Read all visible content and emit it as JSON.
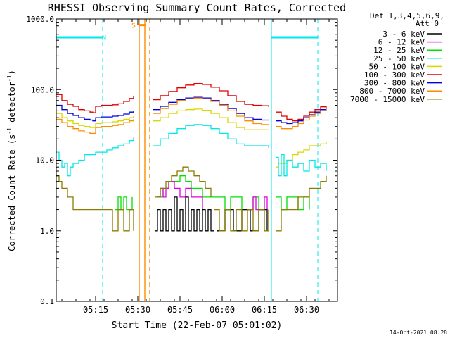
{
  "chart_data": {
    "type": "line",
    "title": "RHESSI Observing Summary Count Rates, Corrected",
    "xlabel": "Start Time (22-Feb-07 05:01:02)",
    "ylabel": "Corrected Count Rate (s",
    "ylabel_sup": "-1",
    "ylabel_tail": " detector",
    "ylabel_tail_sup": "-1",
    "ylabel_close": ")",
    "yscale": "log",
    "ylim": [
      0.1,
      1000.0
    ],
    "xlim_minutes": [
      0,
      100
    ],
    "y_ticks": [
      {
        "value": 1000.0,
        "label": "1000.0"
      },
      {
        "value": 100.0,
        "label": "100.0"
      },
      {
        "value": 10.0,
        "label": "10.0"
      },
      {
        "value": 1.0,
        "label": "1.0"
      },
      {
        "value": 0.1,
        "label": "0.1"
      }
    ],
    "x_ticks": [
      {
        "minute": 14,
        "label": "05:15"
      },
      {
        "minute": 29,
        "label": "05:30"
      },
      {
        "minute": 44,
        "label": "05:45"
      },
      {
        "minute": 59,
        "label": "06:00"
      },
      {
        "minute": 74,
        "label": "06:15"
      },
      {
        "minute": 89,
        "label": "06:30"
      }
    ],
    "legend": {
      "placement": "right",
      "header": [
        "Det 1,3,4,5,6,9,",
        "Att 0"
      ],
      "entries": [
        {
          "label": "3 - 6 keV",
          "color": "#000000"
        },
        {
          "label": "6 - 12 keV",
          "color": "#e000e0"
        },
        {
          "label": "12 - 25 keV",
          "color": "#00e000"
        },
        {
          "label": "25 - 50 keV",
          "color": "#00e8e8"
        },
        {
          "label": "50 - 100 keV",
          "color": "#d8d800"
        },
        {
          "label": "100 - 300 keV",
          "color": "#e00000"
        },
        {
          "label": "300 - 800 keV",
          "color": "#0000e0"
        },
        {
          "label": "800 - 7000 keV",
          "color": "#ff8c00"
        },
        {
          "label": "7000 - 15000 keV",
          "color": "#8b7d00"
        }
      ]
    },
    "annotations": [
      {
        "label": "N",
        "color": "#00e8e8",
        "minute": 17
      },
      {
        "label": "S",
        "color": "#ff8c00",
        "minute": 27.5
      }
    ],
    "night_markers": {
      "color": "#00e8e8",
      "solid_minutes": [
        0,
        76.5
      ],
      "dashed_minutes": [
        16.5,
        93
      ],
      "bars": [
        {
          "from": 0,
          "to": 16.5,
          "y": 550
        },
        {
          "from": 76.5,
          "to": 93,
          "y": 550
        }
      ]
    },
    "saa_markers": {
      "color": "#ff8c00",
      "solid_minutes": [
        29.5,
        31.5
      ],
      "dashed_minutes": [
        33.2
      ],
      "bar": {
        "from": 29.5,
        "to": 32,
        "y": 820
      }
    },
    "series": [
      {
        "name": "100 - 300 keV",
        "color": "#e00000",
        "segments": [
          {
            "x": [
              0,
              2,
              4,
              6,
              8,
              10,
              12,
              13,
              14,
              16,
              18,
              20,
              22,
              24,
              26,
              27.5
            ],
            "y": [
              85,
              70,
              62,
              58,
              52,
              50,
              48,
              47,
              58,
              60,
              60,
              61,
              63,
              68,
              75,
              82
            ]
          },
          {
            "x": [
              34.5,
              37,
              40,
              43,
              46,
              49,
              52,
              55,
              58,
              61,
              64,
              67,
              70,
              73,
              75.5
            ],
            "y": [
              72,
              82,
              94,
              106,
              116,
              122,
              118,
              108,
              96,
              82,
              68,
              62,
              60,
              59,
              57
            ]
          },
          {
            "x": [
              78,
              80,
              82,
              84,
              86,
              88,
              90,
              92,
              94,
              96
            ],
            "y": [
              48,
              42,
              38,
              36,
              38,
              42,
              48,
              52,
              57,
              58
            ]
          }
        ]
      },
      {
        "name": "300 - 800 keV",
        "color": "#0000e0",
        "segments": [
          {
            "x": [
              0,
              2,
              4,
              6,
              8,
              10,
              12,
              13,
              14,
              16,
              18,
              20,
              22,
              24,
              26,
              27.5
            ],
            "y": [
              60,
              52,
              46,
              43,
              40,
              38,
              37,
              36,
              40,
              41,
              41,
              42,
              43,
              45,
              48,
              50
            ]
          },
          {
            "x": [
              34.5,
              37,
              40,
              43,
              46,
              49,
              52,
              55,
              58,
              61,
              64,
              67,
              70,
              73,
              75.5
            ],
            "y": [
              52,
              58,
              66,
              72,
              76,
              78,
              76,
              70,
              62,
              54,
              46,
              40,
              38,
              37,
              37
            ]
          },
          {
            "x": [
              78,
              80,
              82,
              84,
              86,
              88,
              90,
              92,
              94,
              96
            ],
            "y": [
              36,
              34,
              33,
              34,
              36,
              40,
              44,
              48,
              52,
              56
            ]
          }
        ]
      },
      {
        "name": "800 - 7000 keV",
        "color": "#ff8c00",
        "segments": [
          {
            "x": [
              0,
              2,
              4,
              6,
              8,
              10,
              12,
              13,
              14,
              16,
              18,
              20,
              22,
              24,
              26,
              27.5
            ],
            "y": [
              38,
              34,
              30,
              28,
              26,
              25,
              24,
              24,
              29,
              30,
              30,
              31,
              32,
              34,
              36,
              38
            ]
          },
          {
            "x": [
              34.5,
              37,
              40,
              43,
              46,
              49,
              52,
              55,
              58,
              61,
              64,
              67,
              70,
              73,
              75.5
            ],
            "y": [
              46,
              54,
              62,
              70,
              74,
              76,
              74,
              68,
              60,
              50,
              42,
              36,
              33,
              32,
              32
            ]
          },
          {
            "x": [
              78,
              80,
              82,
              84,
              86,
              88,
              90,
              92,
              94,
              96
            ],
            "y": [
              30,
              28,
              28,
              30,
              33,
              37,
              42,
              46,
              50,
              54
            ]
          }
        ]
      },
      {
        "name": "50 - 100 keV",
        "color": "#d8d800",
        "segments": [
          {
            "x": [
              0,
              2,
              4,
              6,
              8,
              10,
              12,
              13,
              14,
              16,
              18,
              20,
              22,
              24,
              26,
              27.5
            ],
            "y": [
              46,
              40,
              36,
              33,
              31,
              30,
              29,
              29,
              33,
              34,
              34,
              35,
              36,
              38,
              40,
              42
            ]
          },
          {
            "x": [
              34.5,
              37,
              40,
              43,
              46,
              49,
              52,
              55,
              58,
              61,
              64,
              67,
              70,
              73,
              75.5
            ],
            "y": [
              36,
              40,
              46,
              50,
              52,
              53,
              51,
              46,
              40,
              34,
              29,
              27,
              27,
              27,
              27
            ]
          },
          {
            "x": [
              78,
              79,
              80,
              82,
              84,
              86,
              88,
              90,
              92,
              94,
              96
            ],
            "y": [
              8,
              9,
              9,
              10,
              12,
              13,
              14,
              16,
              16,
              17,
              18
            ]
          }
        ]
      },
      {
        "name": "25 - 50 keV",
        "color": "#00e8e8",
        "segments": [
          {
            "x": [
              0,
              1,
              2,
              3,
              4,
              5,
              6,
              8,
              10,
              12,
              14,
              16,
              18,
              20,
              22,
              24,
              26,
              27.5
            ],
            "y": [
              13,
              10,
              8,
              9,
              6,
              8,
              9,
              10,
              12,
              12,
              13,
              13,
              14,
              15,
              16,
              17,
              19,
              21
            ]
          },
          {
            "x": [
              34.5,
              37,
              40,
              43,
              46,
              49,
              52,
              55,
              58,
              61,
              64,
              67,
              70,
              73,
              75.5
            ],
            "y": [
              16,
              20,
              24,
              28,
              31,
              32,
              31,
              28,
              24,
              20,
              17,
              16,
              16,
              16,
              15
            ]
          },
          {
            "x": [
              78,
              79,
              80,
              81,
              82,
              84,
              86,
              88,
              90,
              92,
              94,
              96
            ],
            "y": [
              11,
              6,
              12,
              6,
              10,
              8,
              9,
              7,
              10,
              8,
              9,
              7
            ]
          }
        ]
      },
      {
        "name": "12 - 25 keV",
        "color": "#00e000",
        "segments": [
          {
            "x": [
              21,
              22,
              23,
              24,
              25,
              26,
              27
            ],
            "y": [
              2,
              3,
              2,
              3,
              2,
              2,
              3
            ]
          },
          {
            "x": [
              36,
              38,
              40,
              42,
              44,
              46,
              48,
              50,
              52,
              54,
              56,
              58,
              60,
              62,
              64,
              66,
              68,
              70,
              72,
              74
            ],
            "y": [
              3,
              4,
              5,
              5,
              6,
              5,
              4,
              4,
              3,
              3,
              3,
              3,
              2,
              3,
              3,
              2,
              2,
              3,
              2,
              2
            ]
          },
          {
            "x": [
              78,
              80,
              82,
              84,
              86,
              88,
              90
            ],
            "y": [
              3,
              2,
              3,
              3,
              2,
              3,
              2
            ]
          }
        ]
      },
      {
        "name": "6 - 12 keV",
        "color": "#e000e0",
        "segments": [
          {
            "x": [
              36,
              37,
              38,
              39,
              40,
              42,
              44,
              46,
              48,
              50,
              52
            ],
            "y": [
              3,
              4,
              3,
              4,
              5,
              4,
              3,
              4,
              3,
              3,
              2
            ]
          },
          {
            "x": [
              68,
              69,
              70,
              71,
              72,
              73,
              74,
              75
            ],
            "y": [
              2,
              2,
              3,
              2,
              2,
              2,
              3,
              2
            ]
          }
        ]
      },
      {
        "name": "3 - 6 keV",
        "color": "#000000",
        "segments": [
          {
            "x": [
              35,
              36,
              37,
              38,
              39,
              40,
              41,
              42,
              43,
              44,
              45,
              46,
              47,
              48,
              49,
              50,
              51,
              52,
              53,
              54,
              55,
              56
            ],
            "y": [
              1,
              2,
              1,
              2,
              1,
              2,
              1,
              3,
              1,
              2,
              1,
              3,
              1,
              2,
              1,
              2,
              1,
              2,
              1,
              2,
              1,
              1
            ]
          },
          {
            "x": [
              57,
              60,
              63,
              66,
              69,
              72,
              75
            ],
            "y": [
              1,
              2,
              1,
              2,
              1,
              2,
              1
            ]
          }
        ]
      },
      {
        "name": "7000 - 15000 keV",
        "color": "#8b7d00",
        "segments": [
          {
            "x": [
              0,
              1,
              2,
              3,
              4,
              5,
              6,
              7,
              8,
              10,
              12,
              14,
              16,
              18,
              20,
              22,
              24,
              26,
              27.5
            ],
            "y": [
              6,
              5,
              4,
              4,
              3,
              3,
              2,
              2,
              2,
              2,
              2,
              2,
              2,
              2,
              1,
              2,
              1,
              2,
              1
            ]
          },
          {
            "x": [
              35,
              37,
              39,
              41,
              43,
              45,
              47,
              49,
              51,
              53,
              55
            ],
            "y": [
              3,
              4,
              5,
              6,
              7,
              8,
              7,
              6,
              5,
              4,
              3
            ]
          },
          {
            "x": [
              56,
              58,
              60,
              62,
              64,
              66,
              68,
              70,
              72,
              74,
              75.5
            ],
            "y": [
              2,
              1,
              2,
              1,
              2,
              1,
              2,
              1,
              2,
              1,
              2
            ]
          },
          {
            "x": [
              78,
              80,
              82,
              84,
              86,
              88,
              90,
              92,
              94,
              96
            ],
            "y": [
              1,
              2,
              2,
              2,
              3,
              3,
              4,
              4,
              5,
              6
            ]
          }
        ]
      }
    ]
  },
  "footer": {
    "timestamp": "14-Oct-2021 08:28"
  }
}
